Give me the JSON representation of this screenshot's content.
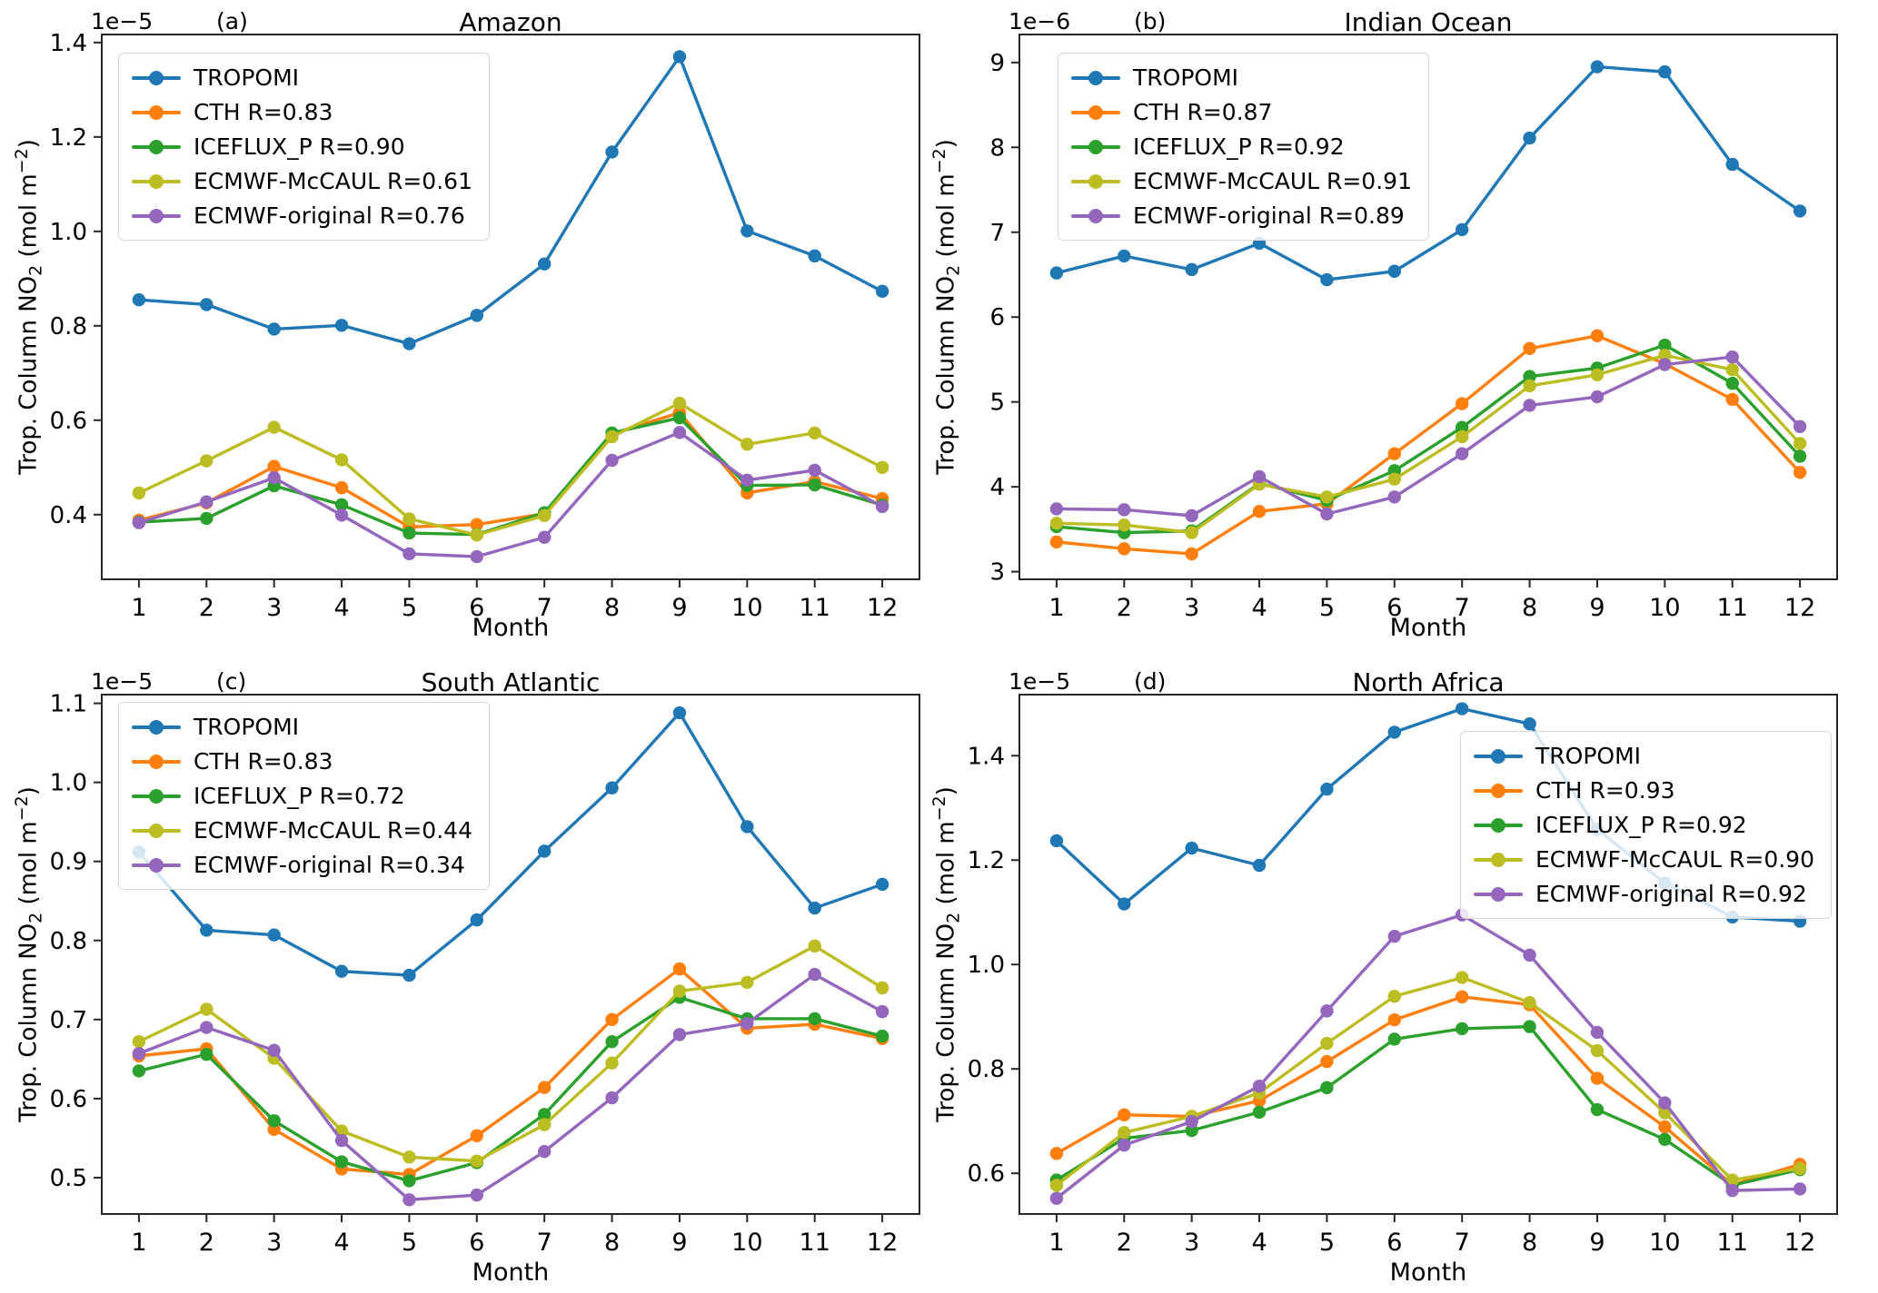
{
  "figure": {
    "xlabel": "Month",
    "ylabel": {
      "prefix": "Trop. Column NO",
      "sub": "2",
      "mid": " (mol m",
      "sup": "−2",
      "suffix": ")"
    }
  },
  "panels": [
    {
      "letter": "(a)",
      "title": "Amazon",
      "offset_text": "1e−5",
      "legend": [
        {
          "label": "TROPOMI"
        },
        {
          "label": "CTH R=0.83"
        },
        {
          "label": "ICEFLUX_P R=0.90"
        },
        {
          "label": "ECMWF-McCAUL R=0.61"
        },
        {
          "label": "ECMWF-original R=0.76"
        }
      ]
    },
    {
      "letter": "(b)",
      "title": "Indian Ocean",
      "offset_text": "1e−6",
      "legend": [
        {
          "label": "TROPOMI"
        },
        {
          "label": "CTH R=0.87"
        },
        {
          "label": "ICEFLUX_P R=0.92"
        },
        {
          "label": "ECMWF-McCAUL R=0.91"
        },
        {
          "label": "ECMWF-original R=0.89"
        }
      ]
    },
    {
      "letter": "(c)",
      "title": "South Atlantic",
      "offset_text": "1e−5",
      "legend": [
        {
          "label": "TROPOMI"
        },
        {
          "label": "CTH R=0.83"
        },
        {
          "label": "ICEFLUX_P R=0.72"
        },
        {
          "label": "ECMWF-McCAUL R=0.44"
        },
        {
          "label": "ECMWF-original R=0.34"
        }
      ]
    },
    {
      "letter": "(d)",
      "title": "North Africa",
      "offset_text": "1e−5",
      "legend": [
        {
          "label": "TROPOMI"
        },
        {
          "label": "CTH R=0.93"
        },
        {
          "label": "ICEFLUX_P R=0.92"
        },
        {
          "label": "ECMWF-McCAUL R=0.90"
        },
        {
          "label": "ECMWF-original R=0.92"
        }
      ]
    }
  ],
  "chart_data": [
    {
      "type": "line",
      "title": "Amazon",
      "xlabel": "Month",
      "ylabel": "Trop. Column NO2 (mol m-2)",
      "y_scale": "1e-5",
      "x": [
        1,
        2,
        3,
        4,
        5,
        6,
        7,
        8,
        9,
        10,
        11,
        12
      ],
      "xticks": [
        1,
        2,
        3,
        4,
        5,
        6,
        7,
        8,
        9,
        10,
        11,
        12
      ],
      "xlim": [
        0.45,
        12.55
      ],
      "ylim": [
        0.263,
        1.417
      ],
      "yticks": [
        0.4,
        0.6,
        0.8,
        1.0,
        1.2,
        1.4
      ],
      "ytick_labels": [
        "0.4",
        "0.6",
        "0.8",
        "1.0",
        "1.2",
        "1.4"
      ],
      "grid": false,
      "legend_position": "upper-left",
      "series": [
        {
          "name": "TROPOMI",
          "color": "#1f77b4",
          "values": [
            0.855,
            0.845,
            0.793,
            0.801,
            0.762,
            0.822,
            0.931,
            1.168,
            1.37,
            1.001,
            0.948,
            0.873
          ]
        },
        {
          "name": "CTH",
          "color": "#ff7f0e",
          "values": [
            0.388,
            0.425,
            0.502,
            0.457,
            0.374,
            0.379,
            0.402,
            0.571,
            0.616,
            0.446,
            0.47,
            0.434
          ]
        },
        {
          "name": "ICEFLUX_P",
          "color": "#2ca02c",
          "values": [
            0.384,
            0.392,
            0.461,
            0.421,
            0.361,
            0.358,
            0.404,
            0.573,
            0.605,
            0.462,
            0.463,
            0.42
          ]
        },
        {
          "name": "ECMWF-McCAUL",
          "color": "#bcbd22",
          "values": [
            0.446,
            0.514,
            0.585,
            0.516,
            0.391,
            0.357,
            0.398,
            0.565,
            0.636,
            0.549,
            0.573,
            0.5
          ]
        },
        {
          "name": "ECMWF-original",
          "color": "#9467bd",
          "values": [
            0.383,
            0.427,
            0.478,
            0.399,
            0.317,
            0.311,
            0.352,
            0.515,
            0.574,
            0.473,
            0.494,
            0.417
          ]
        }
      ]
    },
    {
      "type": "line",
      "title": "Indian Ocean",
      "xlabel": "Month",
      "ylabel": "Trop. Column NO2 (mol m-2)",
      "y_scale": "1e-6",
      "x": [
        1,
        2,
        3,
        4,
        5,
        6,
        7,
        8,
        9,
        10,
        11,
        12
      ],
      "xticks": [
        1,
        2,
        3,
        4,
        5,
        6,
        7,
        8,
        9,
        10,
        11,
        12
      ],
      "xlim": [
        0.45,
        12.55
      ],
      "ylim": [
        2.91,
        9.33
      ],
      "yticks": [
        3,
        4,
        5,
        6,
        7,
        8,
        9
      ],
      "ytick_labels": [
        "3",
        "4",
        "5",
        "6",
        "7",
        "8",
        "9"
      ],
      "grid": false,
      "legend_position": "upper-left",
      "series": [
        {
          "name": "TROPOMI",
          "color": "#1f77b4",
          "values": [
            6.52,
            6.72,
            6.56,
            6.87,
            6.44,
            6.54,
            7.03,
            8.11,
            8.95,
            8.89,
            7.8,
            7.25
          ]
        },
        {
          "name": "CTH",
          "color": "#ff7f0e",
          "values": [
            3.35,
            3.27,
            3.21,
            3.71,
            3.8,
            4.39,
            4.98,
            5.63,
            5.78,
            5.45,
            5.03,
            4.17
          ]
        },
        {
          "name": "ICEFLUX_P",
          "color": "#2ca02c",
          "values": [
            3.53,
            3.46,
            3.48,
            4.04,
            3.84,
            4.19,
            4.7,
            5.3,
            5.4,
            5.67,
            5.22,
            4.36
          ]
        },
        {
          "name": "ECMWF-McCAUL",
          "color": "#bcbd22",
          "values": [
            3.57,
            3.55,
            3.46,
            4.03,
            3.88,
            4.09,
            4.59,
            5.19,
            5.32,
            5.55,
            5.38,
            4.51
          ]
        },
        {
          "name": "ECMWF-original",
          "color": "#9467bd",
          "values": [
            3.74,
            3.73,
            3.66,
            4.12,
            3.68,
            3.88,
            4.39,
            4.96,
            5.06,
            5.44,
            5.53,
            4.71
          ]
        }
      ]
    },
    {
      "type": "line",
      "title": "South Atlantic",
      "xlabel": "Month",
      "ylabel": "Trop. Column NO2 (mol m-2)",
      "y_scale": "1e-5",
      "x": [
        1,
        2,
        3,
        4,
        5,
        6,
        7,
        8,
        9,
        10,
        11,
        12
      ],
      "xticks": [
        1,
        2,
        3,
        4,
        5,
        6,
        7,
        8,
        9,
        10,
        11,
        12
      ],
      "xlim": [
        0.45,
        12.55
      ],
      "ylim": [
        0.454,
        1.111
      ],
      "yticks": [
        0.5,
        0.6,
        0.7,
        0.8,
        0.9,
        1.0,
        1.1
      ],
      "ytick_labels": [
        "0.5",
        "0.6",
        "0.7",
        "0.8",
        "0.9",
        "1.0",
        "1.1"
      ],
      "grid": false,
      "legend_position": "upper-left",
      "series": [
        {
          "name": "TROPOMI",
          "color": "#1f77b4",
          "values": [
            0.912,
            0.813,
            0.807,
            0.761,
            0.756,
            0.826,
            0.913,
            0.993,
            1.088,
            0.944,
            0.841,
            0.871
          ]
        },
        {
          "name": "CTH",
          "color": "#ff7f0e",
          "values": [
            0.654,
            0.663,
            0.561,
            0.511,
            0.504,
            0.553,
            0.614,
            0.7,
            0.764,
            0.689,
            0.694,
            0.676
          ]
        },
        {
          "name": "ICEFLUX_P",
          "color": "#2ca02c",
          "values": [
            0.635,
            0.656,
            0.572,
            0.52,
            0.496,
            0.519,
            0.58,
            0.672,
            0.728,
            0.701,
            0.701,
            0.679
          ]
        },
        {
          "name": "ECMWF-McCAUL",
          "color": "#bcbd22",
          "values": [
            0.672,
            0.713,
            0.651,
            0.559,
            0.526,
            0.521,
            0.567,
            0.645,
            0.736,
            0.747,
            0.793,
            0.74
          ]
        },
        {
          "name": "ECMWF-original",
          "color": "#9467bd",
          "values": [
            0.657,
            0.69,
            0.661,
            0.547,
            0.472,
            0.478,
            0.533,
            0.601,
            0.681,
            0.695,
            0.757,
            0.71
          ]
        }
      ]
    },
    {
      "type": "line",
      "title": "North Africa",
      "xlabel": "Month",
      "ylabel": "Trop. Column NO2 (mol m-2)",
      "y_scale": "1e-5",
      "x": [
        1,
        2,
        3,
        4,
        5,
        6,
        7,
        8,
        9,
        10,
        11,
        12
      ],
      "xticks": [
        1,
        2,
        3,
        4,
        5,
        6,
        7,
        8,
        9,
        10,
        11,
        12
      ],
      "xlim": [
        0.45,
        12.55
      ],
      "ylim": [
        0.522,
        1.517
      ],
      "yticks": [
        0.6,
        0.8,
        1.0,
        1.2,
        1.4
      ],
      "ytick_labels": [
        "0.6",
        "0.8",
        "1.0",
        "1.2",
        "1.4"
      ],
      "grid": false,
      "legend_position": "upper-right",
      "series": [
        {
          "name": "TROPOMI",
          "color": "#1f77b4",
          "values": [
            1.237,
            1.116,
            1.223,
            1.19,
            1.336,
            1.445,
            1.49,
            1.461,
            1.259,
            1.156,
            1.091,
            1.083
          ]
        },
        {
          "name": "CTH",
          "color": "#ff7f0e",
          "values": [
            0.638,
            0.712,
            0.709,
            0.739,
            0.814,
            0.894,
            0.938,
            0.923,
            0.782,
            0.689,
            0.578,
            0.617
          ]
        },
        {
          "name": "ICEFLUX_P",
          "color": "#2ca02c",
          "values": [
            0.587,
            0.667,
            0.682,
            0.717,
            0.764,
            0.857,
            0.877,
            0.881,
            0.722,
            0.665,
            0.577,
            0.607
          ]
        },
        {
          "name": "ECMWF-McCAUL",
          "color": "#bcbd22",
          "values": [
            0.577,
            0.678,
            0.709,
            0.754,
            0.849,
            0.939,
            0.975,
            0.927,
            0.835,
            0.716,
            0.587,
            0.609
          ]
        },
        {
          "name": "ECMWF-original",
          "color": "#9467bd",
          "values": [
            0.552,
            0.654,
            0.699,
            0.767,
            0.911,
            1.054,
            1.095,
            1.018,
            0.87,
            0.735,
            0.567,
            0.57
          ]
        }
      ]
    }
  ]
}
